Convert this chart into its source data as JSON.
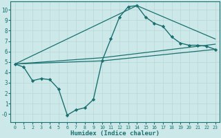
{
  "background_color": "#cce8e8",
  "grid_color": "#b8d8d8",
  "line_color": "#1a7070",
  "xlabel": "Humidex (Indice chaleur)",
  "xlim": [
    -0.5,
    23.5
  ],
  "ylim": [
    -0.8,
    10.8
  ],
  "yticks": [
    0,
    1,
    2,
    3,
    4,
    5,
    6,
    7,
    8,
    9,
    10
  ],
  "ytick_labels": [
    "-0",
    "1",
    "2",
    "3",
    "4",
    "5",
    "6",
    "7",
    "8",
    "9",
    "10"
  ],
  "xticks": [
    0,
    1,
    2,
    3,
    4,
    5,
    6,
    7,
    8,
    9,
    10,
    11,
    12,
    13,
    14,
    15,
    16,
    17,
    18,
    19,
    20,
    21,
    22,
    23
  ],
  "lines": [
    {
      "x": [
        0,
        1,
        2,
        3,
        4,
        5,
        6,
        7,
        8,
        9,
        10,
        11,
        12,
        13,
        14,
        15,
        16,
        17,
        18,
        19,
        20,
        21,
        22,
        23
      ],
      "y": [
        4.8,
        4.5,
        3.2,
        3.4,
        3.3,
        2.4,
        -0.1,
        0.4,
        0.6,
        1.4,
        5.1,
        7.2,
        9.3,
        10.3,
        10.4,
        9.3,
        8.7,
        8.4,
        7.4,
        6.8,
        6.6,
        6.6,
        6.5,
        6.2
      ],
      "marker": "D",
      "markersize": 2.2,
      "linewidth": 1.0
    },
    {
      "x": [
        0,
        10,
        23
      ],
      "y": [
        4.8,
        5.1,
        6.2
      ],
      "marker": null,
      "linewidth": 0.9
    },
    {
      "x": [
        0,
        10,
        23
      ],
      "y": [
        4.8,
        5.4,
        6.7
      ],
      "marker": null,
      "linewidth": 0.9
    },
    {
      "x": [
        0,
        14,
        23
      ],
      "y": [
        4.8,
        10.4,
        7.2
      ],
      "marker": null,
      "linewidth": 0.9
    }
  ]
}
